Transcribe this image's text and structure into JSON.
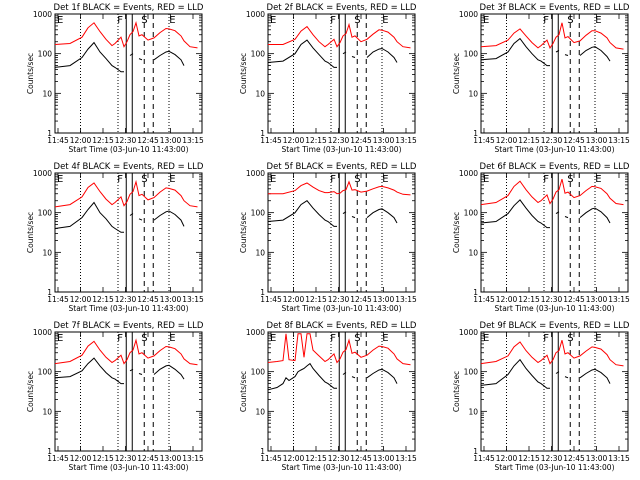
{
  "figure": {
    "ylabel": "Counts/sec",
    "xlabel": "Start Time (03-Jun-10 11:43:00)",
    "x_tick_labels": [
      "11:45",
      "12:00",
      "12:15",
      "12:30",
      "12:45",
      "13:00",
      "13:15"
    ],
    "y_tick_labels": [
      "1",
      "10",
      "100",
      "1000"
    ],
    "flag_labels": [
      "E",
      "F",
      "S",
      "E"
    ],
    "colors": {
      "events": "#000000",
      "lld": "#ff0000"
    }
  },
  "chart_data": [
    {
      "type": "line",
      "title": "Det 1f BLACK = Events, RED = LLD",
      "xlabel": "Start Time (03-Jun-10 11:43:00)",
      "ylabel": "Counts/sec",
      "x_unit": "minutes since 11:43:00",
      "xlim": [
        0,
        98
      ],
      "ylim": [
        1,
        1000
      ],
      "yscale": "log",
      "x": [
        0,
        10,
        18,
        22,
        26,
        30,
        34,
        38,
        40,
        44,
        46,
        48,
        50,
        52,
        54,
        56,
        58,
        62,
        66,
        70,
        74,
        76,
        80,
        84,
        86,
        90,
        95
      ],
      "series": [
        {
          "name": "LLD",
          "values": [
            170,
            180,
            260,
            450,
            600,
            360,
            230,
            160,
            180,
            260,
            150,
            200,
            300,
            360,
            600,
            280,
            300,
            220,
            250,
            340,
            430,
            420,
            380,
            280,
            210,
            150,
            140
          ]
        },
        {
          "name": "Events",
          "values": [
            45,
            50,
            80,
            130,
            190,
            110,
            75,
            50,
            45,
            35,
            35,
            null,
            90,
            100,
            null,
            75,
            70,
            null,
            70,
            90,
            110,
            115,
            95,
            70,
            50,
            null,
            20
          ]
        }
      ],
      "flag_lines": {
        "solid": [
          47.5,
          51.5
        ],
        "dashed": [
          59.5,
          65.5
        ],
        "dotted": [
          17,
          42,
          76
        ]
      }
    },
    {
      "type": "line",
      "title": "Det 2f BLACK = Events, RED = LLD",
      "xlabel": "Start Time (03-Jun-10 11:43:00)",
      "ylabel": "Counts/sec",
      "x_unit": "minutes since 11:43:00",
      "xlim": [
        0,
        98
      ],
      "ylim": [
        1,
        1000
      ],
      "yscale": "log",
      "x": [
        0,
        10,
        18,
        22,
        26,
        30,
        34,
        38,
        40,
        44,
        46,
        48,
        50,
        52,
        54,
        56,
        58,
        62,
        66,
        70,
        74,
        76,
        80,
        84,
        86,
        90,
        95
      ],
      "series": [
        {
          "name": "LLD",
          "values": [
            170,
            170,
            230,
            370,
            480,
            300,
            200,
            150,
            170,
            230,
            150,
            190,
            280,
            320,
            540,
            260,
            280,
            200,
            230,
            310,
            400,
            390,
            350,
            260,
            200,
            150,
            140
          ]
        },
        {
          "name": "Events",
          "values": [
            60,
            65,
            100,
            170,
            220,
            140,
            95,
            65,
            60,
            45,
            45,
            null,
            100,
            110,
            null,
            85,
            80,
            null,
            80,
            110,
            130,
            135,
            110,
            80,
            60,
            null,
            25
          ]
        }
      ],
      "flag_lines": {
        "solid": [
          47.5,
          51.5
        ],
        "dashed": [
          59.5,
          65.5
        ],
        "dotted": [
          17,
          42,
          76
        ]
      }
    },
    {
      "type": "line",
      "title": "Det 3f BLACK = Events, RED = LLD",
      "xlabel": "Start Time (03-Jun-10 11:43:00)",
      "ylabel": "Counts/sec",
      "x_unit": "minutes since 11:43:00",
      "xlim": [
        0,
        98
      ],
      "ylim": [
        1,
        1000
      ],
      "yscale": "log",
      "x": [
        0,
        10,
        18,
        22,
        26,
        30,
        34,
        38,
        40,
        44,
        46,
        48,
        50,
        52,
        54,
        56,
        58,
        62,
        66,
        70,
        74,
        76,
        80,
        84,
        86,
        90,
        95
      ],
      "series": [
        {
          "name": "LLD",
          "values": [
            150,
            160,
            220,
            330,
            420,
            280,
            190,
            140,
            160,
            220,
            140,
            180,
            260,
            300,
            600,
            250,
            270,
            190,
            210,
            290,
            380,
            380,
            330,
            250,
            190,
            140,
            130
          ]
        },
        {
          "name": "Events",
          "values": [
            70,
            75,
            110,
            180,
            240,
            150,
            100,
            70,
            65,
            50,
            50,
            null,
            110,
            120,
            null,
            95,
            90,
            null,
            90,
            120,
            145,
            150,
            120,
            85,
            65,
            null,
            30
          ]
        }
      ],
      "flag_lines": {
        "solid": [
          47.5,
          51.5
        ],
        "dashed": [
          59.5,
          65.5
        ],
        "dotted": [
          17,
          42,
          76
        ]
      }
    },
    {
      "type": "line",
      "title": "Det 4f BLACK = Events, RED = LLD",
      "xlabel": "Start Time (03-Jun-10 11:43:00)",
      "ylabel": "Counts/sec",
      "x_unit": "minutes since 11:43:00",
      "xlim": [
        0,
        98
      ],
      "ylim": [
        1,
        1000
      ],
      "yscale": "log",
      "x": [
        0,
        10,
        18,
        22,
        26,
        30,
        34,
        38,
        40,
        44,
        46,
        48,
        50,
        52,
        54,
        56,
        58,
        62,
        66,
        70,
        74,
        76,
        80,
        84,
        86,
        90,
        95
      ],
      "series": [
        {
          "name": "LLD",
          "values": [
            140,
            160,
            250,
            430,
            560,
            340,
            220,
            160,
            180,
            250,
            150,
            190,
            290,
            340,
            600,
            270,
            290,
            210,
            240,
            330,
            420,
            410,
            370,
            270,
            200,
            150,
            140
          ]
        },
        {
          "name": "Events",
          "values": [
            40,
            45,
            75,
            120,
            180,
            100,
            70,
            45,
            40,
            32,
            32,
            null,
            85,
            95,
            null,
            70,
            65,
            null,
            65,
            85,
            105,
            110,
            90,
            65,
            45,
            null,
            18
          ]
        }
      ],
      "flag_lines": {
        "solid": [
          47.5,
          51.5
        ],
        "dashed": [
          59.5,
          65.5
        ],
        "dotted": [
          17,
          42,
          76
        ]
      }
    },
    {
      "type": "line",
      "title": "Det 5f BLACK = Events, RED = LLD",
      "xlabel": "Start Time (03-Jun-10 11:43:00)",
      "ylabel": "Counts/sec",
      "x_unit": "minutes since 11:43:00",
      "xlim": [
        0,
        98
      ],
      "ylim": [
        1,
        1000
      ],
      "yscale": "log",
      "x": [
        0,
        10,
        18,
        22,
        26,
        30,
        34,
        38,
        40,
        44,
        46,
        48,
        50,
        52,
        54,
        56,
        58,
        62,
        66,
        70,
        74,
        76,
        80,
        84,
        86,
        90,
        95
      ],
      "series": [
        {
          "name": "LLD",
          "values": [
            300,
            300,
            360,
            480,
            560,
            440,
            360,
            320,
            320,
            340,
            300,
            310,
            360,
            380,
            600,
            370,
            380,
            330,
            350,
            400,
            450,
            460,
            420,
            370,
            330,
            290,
            280
          ]
        },
        {
          "name": "Events",
          "values": [
            60,
            65,
            100,
            160,
            200,
            130,
            90,
            65,
            60,
            45,
            45,
            null,
            95,
            105,
            null,
            80,
            75,
            null,
            75,
            100,
            120,
            125,
            100,
            75,
            55,
            null,
            22
          ]
        }
      ],
      "flag_lines": {
        "solid": [
          47.5,
          51.5
        ],
        "dashed": [
          59.5,
          65.5
        ],
        "dotted": [
          17,
          42,
          76
        ]
      }
    },
    {
      "type": "line",
      "title": "Det 6f BLACK = Events, RED = LLD",
      "xlabel": "Start Time (03-Jun-10 11:43:00)",
      "ylabel": "Counts/sec",
      "x_unit": "minutes since 11:43:00",
      "xlim": [
        0,
        98
      ],
      "ylim": [
        1,
        1000
      ],
      "yscale": "log",
      "x": [
        0,
        10,
        18,
        22,
        26,
        30,
        34,
        38,
        40,
        44,
        46,
        48,
        50,
        52,
        54,
        56,
        58,
        62,
        66,
        70,
        74,
        76,
        80,
        84,
        86,
        90,
        95
      ],
      "series": [
        {
          "name": "LLD",
          "values": [
            160,
            180,
            270,
            460,
            620,
            380,
            250,
            180,
            200,
            280,
            170,
            220,
            330,
            380,
            700,
            310,
            330,
            240,
            270,
            360,
            460,
            450,
            410,
            300,
            230,
            170,
            160
          ]
        },
        {
          "name": "Events",
          "values": [
            55,
            60,
            95,
            150,
            210,
            130,
            85,
            60,
            55,
            42,
            42,
            null,
            95,
            105,
            null,
            80,
            75,
            null,
            75,
            100,
            125,
            130,
            105,
            75,
            55,
            null,
            22
          ]
        }
      ],
      "flag_lines": {
        "solid": [
          47.5,
          51.5
        ],
        "dashed": [
          59.5,
          65.5
        ],
        "dotted": [
          17,
          42,
          76
        ]
      }
    },
    {
      "type": "line",
      "title": "Det 7f BLACK = Events, RED = LLD",
      "xlabel": "Start Time (03-Jun-10 11:43:00)",
      "ylabel": "Counts/sec",
      "x_unit": "minutes since 11:43:00",
      "xlim": [
        0,
        98
      ],
      "ylim": [
        1,
        1000
      ],
      "yscale": "log",
      "x": [
        0,
        10,
        18,
        22,
        26,
        30,
        34,
        38,
        40,
        44,
        46,
        48,
        50,
        52,
        54,
        56,
        58,
        62,
        66,
        70,
        74,
        76,
        80,
        84,
        86,
        90,
        95
      ],
      "series": [
        {
          "name": "LLD",
          "values": [
            160,
            180,
            260,
            440,
            580,
            350,
            230,
            170,
            190,
            260,
            160,
            200,
            300,
            350,
            620,
            280,
            300,
            220,
            250,
            340,
            430,
            420,
            380,
            280,
            210,
            160,
            150
          ]
        },
        {
          "name": "Events",
          "values": [
            70,
            75,
            105,
            160,
            220,
            140,
            95,
            70,
            65,
            50,
            50,
            null,
            105,
            115,
            null,
            90,
            85,
            null,
            85,
            115,
            140,
            145,
            115,
            85,
            65,
            null,
            28
          ]
        }
      ],
      "flag_lines": {
        "solid": [
          47.5,
          51.5
        ],
        "dashed": [
          59.5,
          65.5
        ],
        "dotted": [
          17,
          42,
          76
        ]
      }
    },
    {
      "type": "line",
      "title": "Det 8f BLACK = Events, RED = LLD",
      "xlabel": "Start Time (03-Jun-10 11:43:00)",
      "ylabel": "Counts/sec",
      "x_unit": "minutes since 11:43:00",
      "xlim": [
        0,
        98
      ],
      "ylim": [
        1,
        1000
      ],
      "yscale": "log",
      "x": [
        0,
        6,
        10,
        12,
        14,
        18,
        20,
        22,
        24,
        26,
        28,
        30,
        34,
        38,
        40,
        44,
        46,
        48,
        50,
        52,
        54,
        56,
        58,
        62,
        66,
        70,
        74,
        76,
        80,
        84,
        86,
        90,
        95
      ],
      "series": [
        {
          "name": "LLD",
          "values": [
            170,
            180,
            190,
            900,
            200,
            190,
            900,
            900,
            230,
            900,
            900,
            350,
            250,
            180,
            200,
            280,
            170,
            210,
            310,
            360,
            620,
            290,
            310,
            230,
            260,
            350,
            440,
            430,
            390,
            280,
            210,
            160,
            150
          ]
        },
        {
          "name": "Events",
          "values": [
            35,
            40,
            50,
            70,
            60,
            75,
            100,
            110,
            120,
            140,
            160,
            120,
            80,
            55,
            50,
            38,
            38,
            null,
            85,
            95,
            null,
            75,
            70,
            null,
            70,
            90,
            110,
            115,
            95,
            70,
            50,
            null,
            20
          ]
        }
      ],
      "flag_lines": {
        "solid": [
          47.5,
          51.5
        ],
        "dashed": [
          59.5,
          65.5
        ],
        "dotted": [
          17,
          42,
          76
        ]
      }
    },
    {
      "type": "line",
      "title": "Det 9f BLACK = Events, RED = LLD",
      "xlabel": "Start Time (03-Jun-10 11:43:00)",
      "ylabel": "Counts/sec",
      "x_unit": "minutes since 11:43:00",
      "xlim": [
        0,
        98
      ],
      "ylim": [
        1,
        1000
      ],
      "yscale": "log",
      "x": [
        0,
        10,
        18,
        22,
        26,
        30,
        34,
        38,
        40,
        44,
        46,
        48,
        50,
        52,
        54,
        56,
        58,
        62,
        66,
        70,
        74,
        76,
        80,
        84,
        86,
        90,
        95
      ],
      "series": [
        {
          "name": "LLD",
          "values": [
            160,
            180,
            250,
            420,
            560,
            340,
            230,
            170,
            190,
            260,
            160,
            200,
            300,
            340,
            620,
            280,
            300,
            220,
            250,
            330,
            420,
            410,
            370,
            270,
            200,
            150,
            140
          ]
        },
        {
          "name": "Events",
          "values": [
            45,
            50,
            85,
            140,
            200,
            120,
            80,
            55,
            50,
            38,
            38,
            null,
            90,
            100,
            null,
            75,
            70,
            null,
            70,
            90,
            110,
            115,
            95,
            70,
            50,
            null,
            20
          ]
        }
      ],
      "flag_lines": {
        "solid": [
          47.5,
          51.5
        ],
        "dashed": [
          59.5,
          65.5
        ],
        "dotted": [
          17,
          42,
          76
        ]
      }
    }
  ]
}
